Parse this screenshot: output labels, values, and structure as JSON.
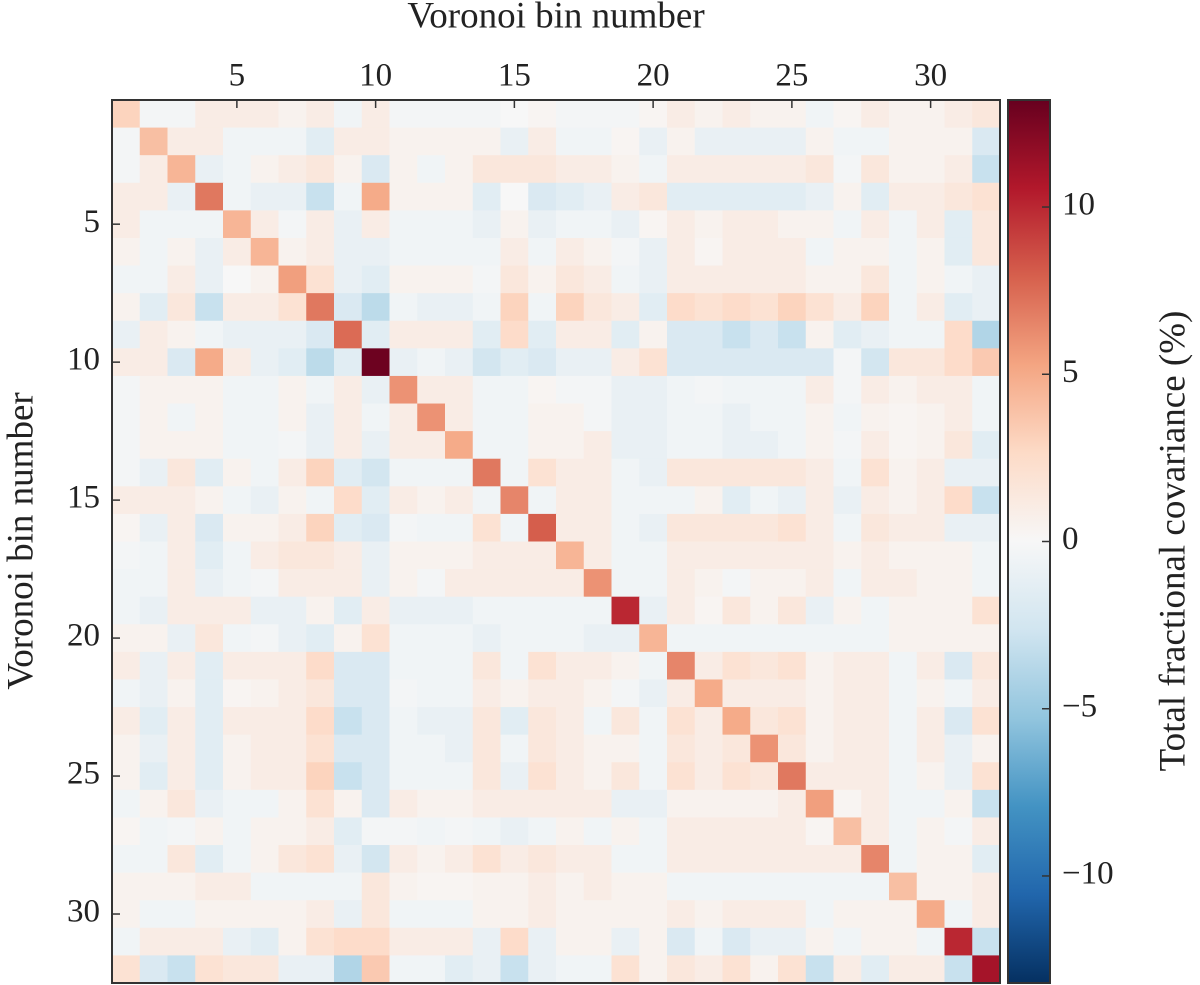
{
  "chart_data": {
    "type": "heatmap",
    "xlabel": "Voronoi bin number",
    "ylabel": "Voronoi bin number",
    "colorbar_label": "Total fractional covariance (%)",
    "x": [
      1,
      2,
      3,
      4,
      5,
      6,
      7,
      8,
      9,
      10,
      11,
      12,
      13,
      14,
      15,
      16,
      17,
      18,
      19,
      20,
      21,
      22,
      23,
      24,
      25,
      26,
      27,
      28,
      29,
      30,
      31,
      32
    ],
    "y": [
      1,
      2,
      3,
      4,
      5,
      6,
      7,
      8,
      9,
      10,
      11,
      12,
      13,
      14,
      15,
      16,
      17,
      18,
      19,
      20,
      21,
      22,
      23,
      24,
      25,
      26,
      27,
      28,
      29,
      30,
      31,
      32
    ],
    "xlim": [
      0.5,
      32.5
    ],
    "ylim": [
      32.5,
      0.5
    ],
    "xticks": [
      5,
      10,
      15,
      20,
      25,
      30
    ],
    "yticks": [
      5,
      10,
      15,
      20,
      25,
      30
    ],
    "clim": [
      -13.2,
      13.2
    ],
    "cticks": [
      {
        "value": -10,
        "label": "−10"
      },
      {
        "value": -5,
        "label": "−5"
      },
      0,
      5,
      10
    ],
    "colormap": [
      "#053061",
      "#2166ac",
      "#4393c3",
      "#92c5de",
      "#d1e5f0",
      "#f7f7f7",
      "#fddbc7",
      "#f4a582",
      "#d6604d",
      "#b2182b",
      "#67001f"
    ],
    "values": [
      [
        3,
        -0.3,
        -0.3,
        1,
        1,
        1,
        0.5,
        1,
        -0.5,
        1,
        -0.3,
        -0.3,
        -0.3,
        -0.3,
        0,
        0.3,
        -0.3,
        -0.3,
        -0.3,
        0.3,
        1,
        0.5,
        1,
        0.5,
        0.5,
        -0.5,
        0.3,
        1,
        0.5,
        0.5,
        1,
        1.5
      ],
      [
        -0.3,
        4,
        1,
        1,
        -0.5,
        -0.5,
        -0.5,
        -1.5,
        1,
        1,
        0.5,
        0.5,
        0.5,
        0.5,
        -1,
        1,
        -0.5,
        -0.5,
        0.3,
        -1,
        0.5,
        -1,
        -1,
        -1,
        -1,
        0.5,
        -0.5,
        -0.5,
        0.5,
        0.5,
        0.5,
        -2
      ],
      [
        -0.3,
        1,
        4.5,
        -1,
        -0.5,
        0.5,
        1,
        1.5,
        0.5,
        -2,
        0.5,
        -0.5,
        0.5,
        1.5,
        1.5,
        1.5,
        1,
        1,
        0.5,
        -0.5,
        1,
        1,
        1,
        1,
        1,
        1.5,
        -0.3,
        1.5,
        0.5,
        0.5,
        1,
        -3
      ],
      [
        1,
        1,
        -1,
        7,
        -0.5,
        -1,
        -1,
        -3,
        -0.5,
        5,
        0.5,
        0.5,
        0.5,
        -1.5,
        0,
        -2,
        -1.5,
        -1,
        1,
        1.5,
        -1.5,
        -1.5,
        -1.5,
        -1.5,
        -1.5,
        -1,
        0.5,
        -1.5,
        1,
        1,
        1.5,
        2
      ],
      [
        1,
        -0.5,
        -0.5,
        -0.5,
        4.5,
        1,
        -0.3,
        1,
        -1,
        1,
        -0.5,
        -0.5,
        -0.5,
        -1,
        0.5,
        -1,
        -0.5,
        -0.5,
        -1,
        0.3,
        1,
        0.5,
        1,
        1,
        0.5,
        0.5,
        -0.5,
        1,
        -0.5,
        1,
        -1.5,
        1.5
      ],
      [
        0.5,
        -0.5,
        0.5,
        -1,
        1,
        4.5,
        0.5,
        1,
        -1,
        -1,
        -0.5,
        -0.5,
        -0.5,
        -0.5,
        1,
        -0.5,
        1,
        0.5,
        -0.3,
        -1,
        1,
        0.3,
        1,
        1,
        1,
        -0.5,
        0.5,
        0.5,
        -0.5,
        0.5,
        -1.5,
        1.5
      ],
      [
        -0.5,
        -0.5,
        1,
        -1,
        0,
        0.5,
        5.5,
        2,
        -1,
        -1.5,
        0.5,
        0.5,
        0.5,
        -0.3,
        1.5,
        0.5,
        1.5,
        1,
        -0.5,
        -1,
        1,
        1,
        1,
        1,
        1,
        0.5,
        0.5,
        1.5,
        -0.5,
        0.5,
        -0.5,
        -1
      ],
      [
        0.5,
        -1.5,
        1.5,
        -3,
        1,
        1,
        2,
        7,
        -2,
        -3.5,
        -0.5,
        -1,
        -1,
        -0.5,
        3,
        -0.5,
        3,
        1.5,
        1,
        -1.5,
        2.5,
        2,
        2.5,
        2,
        3,
        2,
        1,
        3,
        -0.5,
        1,
        -1.5,
        -1
      ],
      [
        -1,
        1,
        0.5,
        -0.5,
        -1,
        -1,
        -1,
        -2,
        7.5,
        -1.5,
        1,
        1,
        1,
        -1.5,
        2.5,
        -1.5,
        1,
        1,
        -1.5,
        0.5,
        -2,
        -2,
        -3,
        -2,
        -3,
        0.5,
        -1.5,
        -1,
        -0.5,
        -0.5,
        2.5,
        -4
      ],
      [
        1,
        1,
        -2,
        5,
        1,
        -1,
        -1.5,
        -3.5,
        -1.5,
        13,
        -1,
        -0.5,
        -1,
        -2.5,
        -1.5,
        -2,
        -1,
        -1,
        1,
        2,
        -2,
        -2,
        -2,
        -2,
        -2,
        -2,
        -0.3,
        -2.5,
        1.5,
        1.5,
        2.5,
        3.5
      ],
      [
        -0.3,
        0.5,
        0.5,
        0.5,
        -0.5,
        -0.5,
        0.5,
        -0.5,
        1,
        -1,
        6,
        1,
        1,
        -0.5,
        -0.5,
        0.3,
        -0.3,
        -0.3,
        -1,
        -1,
        -0.5,
        -0.3,
        -0.5,
        -0.5,
        -0.5,
        1,
        -0.3,
        1,
        0.5,
        1,
        1,
        -0.5
      ],
      [
        -0.3,
        0.5,
        -0.5,
        0.5,
        -0.5,
        -0.5,
        0.5,
        -1,
        1,
        -0.5,
        1,
        6,
        1,
        -0.5,
        -0.5,
        0.5,
        0.5,
        -0.3,
        -1,
        -1,
        -0.5,
        -0.5,
        -1,
        -0.5,
        -0.5,
        0.5,
        -0.5,
        0.5,
        0.3,
        0.5,
        1,
        -0.5
      ],
      [
        -0.3,
        0.5,
        0.5,
        0.5,
        -0.5,
        -0.5,
        -0.3,
        -1,
        1,
        -1,
        1,
        1,
        5,
        -0.5,
        -0.5,
        0.5,
        0.5,
        1,
        -1,
        -1,
        -0.5,
        -0.5,
        -1,
        -1,
        -0.5,
        0.5,
        -0.3,
        1,
        0.3,
        0.5,
        1.5,
        -1.5
      ],
      [
        -0.3,
        -1,
        1.5,
        -1.5,
        0.5,
        -0.5,
        1,
        3,
        -1.5,
        -2.5,
        -0.5,
        -0.5,
        -0.5,
        7,
        -0.5,
        2,
        1,
        1,
        -0.5,
        -1,
        1.5,
        1.5,
        1.5,
        1.5,
        1.5,
        1,
        -0.5,
        2,
        0.5,
        1,
        -1,
        -1
      ],
      [
        1,
        1,
        1,
        0.5,
        -0.5,
        -1,
        0.5,
        -0.5,
        2.5,
        -1.5,
        1,
        0.5,
        1,
        -0.5,
        6.5,
        -0.5,
        1,
        1,
        -0.5,
        -0.5,
        -0.5,
        0.5,
        -1.5,
        -0.5,
        -1,
        1,
        -1,
        1,
        0.5,
        1,
        2.5,
        -3
      ],
      [
        0.3,
        -1,
        1,
        -2,
        0.5,
        0.5,
        1,
        3,
        -1.5,
        -2,
        -0.3,
        -0.5,
        -0.5,
        2,
        -0.5,
        8,
        1,
        1,
        -0.5,
        -1,
        1.5,
        1.5,
        1.5,
        1.5,
        2,
        1,
        -0.5,
        1.5,
        1,
        1,
        -1,
        -1
      ],
      [
        -0.3,
        -0.5,
        1,
        -1.5,
        -0.5,
        1,
        1.5,
        1.5,
        1,
        -1,
        0.5,
        0.5,
        0.5,
        1,
        1,
        1,
        4.5,
        1,
        -0.5,
        -0.5,
        1,
        1,
        1,
        1,
        1,
        1,
        0.5,
        1,
        0.5,
        0.5,
        0.5,
        -0.5
      ],
      [
        -0.5,
        -0.5,
        1,
        -1,
        -0.5,
        -0.3,
        1,
        1,
        1,
        -1,
        0.5,
        -0.3,
        1,
        1,
        1,
        1,
        1,
        6,
        -0.5,
        -0.5,
        1,
        0.5,
        -0.3,
        0.5,
        0.5,
        1,
        -0.5,
        1,
        1,
        0.5,
        0.5,
        -0.5
      ],
      [
        -0.5,
        -1,
        1,
        1,
        1,
        -1,
        -1,
        0.5,
        -1.5,
        1,
        -1,
        -1,
        -1,
        -0.5,
        -0.5,
        -0.5,
        -0.5,
        -0.5,
        10,
        -1,
        1,
        0.3,
        1.5,
        0.5,
        1.5,
        -1,
        0.5,
        -0.5,
        0.5,
        0.5,
        0.5,
        2
      ],
      [
        0.5,
        0.5,
        -1,
        1.5,
        -0.5,
        -0.3,
        -1,
        -1.5,
        0.5,
        2,
        -0.5,
        -0.5,
        -0.5,
        -1,
        -0.5,
        -0.5,
        -0.5,
        -1,
        -1,
        4.5,
        -0.5,
        -0.5,
        -0.5,
        -0.5,
        -0.5,
        -0.5,
        -0.5,
        -0.5,
        0.5,
        0.5,
        0.5,
        0.5
      ],
      [
        1,
        -1,
        1,
        -1.5,
        1,
        1,
        1,
        2.5,
        -2,
        -2,
        -0.5,
        -0.5,
        -0.5,
        1.5,
        -0.5,
        2,
        1,
        1,
        0.5,
        -0.5,
        6.5,
        1,
        2,
        1.5,
        2,
        0.5,
        1,
        1,
        -0.5,
        1,
        -2,
        1.5
      ],
      [
        -0.5,
        -1,
        0.5,
        -1.5,
        0.3,
        0.5,
        1,
        1.5,
        -2,
        -2,
        -0.3,
        -0.5,
        -0.5,
        1,
        0.5,
        1,
        1,
        0.5,
        -0.3,
        -1,
        1,
        5,
        1,
        1,
        1,
        0.5,
        1,
        1,
        -0.5,
        0.5,
        -0.5,
        1
      ],
      [
        1,
        -1.5,
        1,
        -1.5,
        1,
        1,
        1,
        2.5,
        -3,
        -2,
        -0.5,
        -1,
        -1,
        1.5,
        -1.5,
        1.5,
        1,
        -0.5,
        1.5,
        -0.5,
        2,
        1,
        5,
        1.5,
        2,
        0.5,
        1,
        1,
        -0.5,
        1,
        -2,
        2
      ],
      [
        0.5,
        -1,
        1,
        -1.5,
        0.5,
        1,
        1,
        2,
        -2,
        -2,
        -0.5,
        -0.5,
        -1,
        1.5,
        -0.5,
        1.5,
        1,
        0.5,
        0.5,
        -0.5,
        1.5,
        1,
        1.5,
        6,
        1.5,
        0.5,
        1,
        1,
        -0.5,
        1,
        -1,
        0.5
      ],
      [
        0.5,
        -1.5,
        1,
        -1.5,
        0.5,
        1,
        1,
        3,
        -3,
        -2,
        -0.5,
        -0.5,
        -0.5,
        1.5,
        -1,
        2,
        1,
        0.5,
        1.5,
        -0.5,
        2,
        1,
        2,
        1.5,
        7,
        1,
        1,
        1,
        -0.5,
        0.5,
        -1,
        2
      ],
      [
        -0.5,
        0.5,
        1.5,
        -1,
        -0.5,
        -0.5,
        0.5,
        2,
        0.5,
        -2,
        1,
        0.5,
        0.5,
        1,
        1,
        1,
        1,
        1,
        -1,
        -1,
        0.5,
        0.5,
        0.5,
        0.5,
        1,
        5.5,
        0.3,
        1,
        -0.5,
        -0.5,
        0.5,
        -3
      ],
      [
        0.3,
        -0.5,
        -0.3,
        0.5,
        -0.5,
        0.5,
        0.5,
        1,
        -1.5,
        -0.3,
        -0.3,
        -0.5,
        -0.3,
        -0.5,
        -1,
        -0.5,
        0.5,
        -0.5,
        0.5,
        -0.5,
        1,
        1,
        1,
        1,
        1,
        0.3,
        4,
        1,
        -0.5,
        0.5,
        -0.3,
        1
      ],
      [
        -0.5,
        -0.5,
        1.5,
        -1.5,
        -0.5,
        0.5,
        1.5,
        2,
        -1,
        -2.5,
        1,
        0.5,
        1,
        2,
        1,
        1.5,
        1,
        1,
        -0.5,
        -0.5,
        1,
        1,
        1,
        1,
        1,
        1,
        1,
        6.5,
        -0.5,
        0.5,
        0.5,
        -1.5
      ],
      [
        0.5,
        0.5,
        0.5,
        1,
        1,
        -0.5,
        -0.5,
        -0.5,
        -0.5,
        1.5,
        0.5,
        0.3,
        0.3,
        0.5,
        0.5,
        1,
        0.5,
        1,
        0.5,
        0.5,
        -0.5,
        -0.5,
        -0.5,
        -0.5,
        -0.5,
        -0.5,
        -0.5,
        -0.5,
        4,
        0.5,
        0.5,
        1
      ],
      [
        0.5,
        -0.5,
        -0.5,
        0.5,
        0.5,
        0.5,
        0.5,
        1,
        -1,
        1.5,
        -0.5,
        -0.5,
        -0.5,
        0.5,
        0.5,
        1,
        0.5,
        0.5,
        0.5,
        0.5,
        1,
        0.5,
        1,
        1,
        1,
        -0.5,
        0.5,
        0.5,
        0.5,
        5,
        -0.5,
        1
      ],
      [
        -0.5,
        1,
        1,
        1,
        -1,
        -1.5,
        0.5,
        2,
        2.5,
        2.5,
        1,
        1,
        1,
        -1,
        2.5,
        -1,
        0.5,
        0.5,
        -1,
        0.5,
        -2,
        -0.5,
        -2,
        -1,
        -1,
        0.5,
        -0.5,
        0.5,
        0.5,
        -0.5,
        10,
        -3
      ],
      [
        2,
        -2,
        -3,
        2,
        1.5,
        1.5,
        -1,
        -1,
        -4,
        3.5,
        -0.5,
        -0.5,
        -1.5,
        -1,
        -3,
        -1,
        -0.5,
        -0.5,
        2,
        0.5,
        1.5,
        1,
        2,
        0.5,
        2,
        -3,
        1,
        -1.5,
        1,
        1,
        -3,
        11
      ]
    ]
  }
}
